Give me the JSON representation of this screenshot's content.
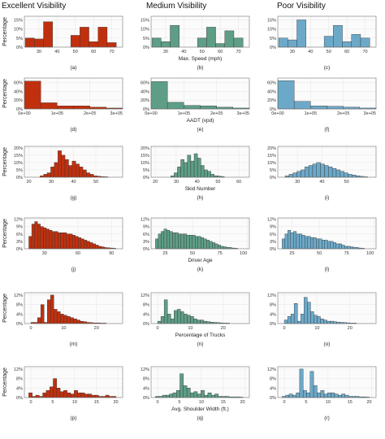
{
  "columns": [
    "Excellent Visibility",
    "Medium Visibility",
    "Poor Visibility"
  ],
  "column_colors": [
    "#c0300e",
    "#5e9e86",
    "#6ca9c9"
  ],
  "chart_data": [
    {
      "type": "bar",
      "row": 0,
      "xlabel": "Max. Speed (mph)",
      "ylabel": "Percentage",
      "xlim": [
        22,
        76
      ],
      "xticks": [
        30,
        40,
        50,
        60,
        70
      ],
      "xtick_labels": [
        "30",
        "40",
        "50",
        "60",
        "70"
      ],
      "ylim": [
        0,
        17
      ],
      "yticks": [
        0,
        5,
        10,
        15
      ],
      "ytick_labels": [
        "0%",
        "5%",
        "10%",
        "15%"
      ],
      "binwidth": 5,
      "panels": [
        {
          "label": "(a)",
          "x": [
            25,
            30,
            35,
            40,
            45,
            50,
            55,
            60,
            65,
            70
          ],
          "values": [
            5,
            4.5,
            14,
            0,
            0,
            6.5,
            11,
            3,
            11,
            2.5
          ]
        },
        {
          "label": "(b)",
          "x": [
            25,
            30,
            35,
            40,
            45,
            50,
            55,
            60,
            65,
            70
          ],
          "values": [
            5,
            3,
            12,
            0,
            0,
            5,
            11,
            2,
            9,
            5
          ]
        },
        {
          "label": "(c)",
          "x": [
            25,
            30,
            35,
            40,
            45,
            50,
            55,
            60,
            65,
            70
          ],
          "values": [
            5,
            4,
            15,
            0,
            0,
            6,
            12,
            3,
            7,
            5
          ]
        }
      ]
    },
    {
      "type": "bar",
      "row": 1,
      "xlabel": "AADT (vpd)",
      "ylabel": "Percentage",
      "xlim": [
        0,
        300000
      ],
      "xticks": [
        0,
        100000,
        200000,
        300000
      ],
      "xtick_labels": [
        "0e+00",
        "1e+05",
        "2e+05",
        "3e+05"
      ],
      "ylim": [
        0,
        70
      ],
      "yticks": [
        0,
        20,
        40,
        60
      ],
      "ytick_labels": [
        "0%",
        "20%",
        "40%",
        "60%"
      ],
      "binwidth": 50000,
      "panels": [
        {
          "label": "(d)",
          "x": [
            25000,
            75000,
            125000,
            175000,
            225000,
            275000
          ],
          "values": [
            63,
            14,
            7,
            7,
            4,
            2
          ]
        },
        {
          "label": "(e)",
          "x": [
            25000,
            75000,
            125000,
            175000,
            225000,
            275000
          ],
          "values": [
            62,
            15,
            8,
            7,
            4,
            2
          ]
        },
        {
          "label": "(f)",
          "x": [
            25000,
            75000,
            125000,
            175000,
            225000,
            275000
          ],
          "values": [
            64,
            17,
            7,
            6,
            4,
            2
          ]
        }
      ]
    },
    {
      "type": "bar",
      "row": 2,
      "xlabel": "Skid Number",
      "ylabel": "Percentage",
      "xlim": [
        18,
        62
      ],
      "xticks": [
        20,
        30,
        40,
        50
      ],
      "xtick_labels": [
        "20",
        "30",
        "40",
        "50"
      ],
      "ylim": [
        0,
        21
      ],
      "yticks": [
        0,
        5,
        10,
        15,
        20
      ],
      "ytick_labels": [
        "0%",
        "5%",
        "10%",
        "15%",
        "20%"
      ],
      "binwidth": 1.6,
      "panels": [
        {
          "label": "(g)",
          "x": [
            25.8,
            27.4,
            29,
            30.6,
            32.2,
            33.8,
            35.4,
            37,
            38.6,
            40.2,
            41.8,
            43.4,
            45,
            46.6,
            48.2,
            49.8,
            51.4,
            53,
            54.6
          ],
          "values": [
            1,
            2,
            3,
            7,
            10,
            18,
            15,
            12,
            8,
            11,
            9,
            7,
            5,
            3,
            2,
            1,
            0.7,
            0.4,
            0.3
          ]
        },
        {
          "label": "(h)",
          "xlim": [
            18,
            65
          ],
          "xticks": [
            20,
            30,
            40,
            50,
            60
          ],
          "xtick_labels": [
            "20",
            "30",
            "40",
            "50",
            "60"
          ],
          "x": [
            28.2,
            29.8,
            31.4,
            33,
            34.6,
            36.2,
            37.8,
            39.4,
            41,
            42.6,
            44.2,
            45.8,
            47.4,
            49,
            50.6,
            52.2
          ],
          "values": [
            1,
            3,
            7,
            12,
            10,
            15,
            11,
            16,
            13,
            8,
            5,
            4,
            2,
            1,
            0.8,
            0.5
          ]
        },
        {
          "label": "(i)",
          "xlim": [
            22,
            62
          ],
          "xticks": [
            30,
            40,
            50
          ],
          "xtick_labels": [
            "30",
            "40",
            "50"
          ],
          "x": [
            25.8,
            27.4,
            29,
            30.6,
            32.2,
            33.8,
            35.4,
            37,
            38.6,
            40.2,
            41.8,
            43.4,
            45,
            46.6,
            48.2,
            49.8,
            51.4,
            53,
            54.6,
            56.2,
            57.8
          ],
          "values": [
            1,
            2,
            3,
            4,
            5,
            7,
            8,
            9,
            10,
            9,
            8,
            7,
            6,
            5,
            4,
            3,
            2,
            1.5,
            1,
            0.6,
            0.3
          ]
        }
      ]
    },
    {
      "type": "bar",
      "row": 3,
      "xlabel": "Driver Age",
      "ylabel": "Percentage",
      "xlim": [
        12,
        102
      ],
      "xticks": [
        25,
        50,
        75,
        100
      ],
      "xtick_labels": [
        "25",
        "50",
        "75",
        "100"
      ],
      "ylim": [
        0,
        12.5
      ],
      "yticks": [
        0,
        3,
        6,
        9,
        12
      ],
      "ytick_labels": [
        "0%",
        "3%",
        "6%",
        "9%",
        "12%"
      ],
      "binwidth": 2.6,
      "panels": [
        {
          "label": "(j)",
          "xlim": [
            12,
            100
          ],
          "xticks": [
            30,
            60,
            90
          ],
          "xtick_labels": [
            "30",
            "60",
            "90"
          ],
          "x": [
            17.3,
            19.9,
            22.5,
            25.1,
            27.7,
            30.3,
            32.9,
            35.5,
            38.1,
            40.7,
            43.3,
            45.9,
            48.5,
            51.1,
            53.7,
            56.3,
            58.9,
            61.5,
            64.1,
            66.7,
            69.3,
            71.9,
            74.5,
            77.1,
            79.7,
            82.3,
            84.9,
            87.5,
            90.1,
            92.7
          ],
          "values": [
            5,
            10,
            11,
            10,
            9,
            8.5,
            8,
            7.5,
            7,
            7,
            6.5,
            6.5,
            6.5,
            6,
            6,
            5.5,
            5,
            4.5,
            4,
            3.5,
            3,
            2.5,
            2,
            1.5,
            1,
            0.8,
            0.5,
            0.4,
            0.3,
            0.2
          ]
        },
        {
          "label": "(k)",
          "x": [
            17.3,
            19.9,
            22.5,
            25.1,
            27.7,
            30.3,
            32.9,
            35.5,
            38.1,
            40.7,
            43.3,
            45.9,
            48.5,
            51.1,
            53.7,
            56.3,
            58.9,
            61.5,
            64.1,
            66.7,
            69.3,
            71.9,
            74.5,
            77.1,
            79.7,
            82.3,
            84.9,
            87.5,
            90.1
          ],
          "values": [
            4,
            6,
            7,
            8,
            7.5,
            7,
            6.5,
            6.5,
            6,
            6,
            6,
            5.5,
            5.5,
            5.5,
            5,
            5,
            4.5,
            4,
            3.5,
            3,
            2.5,
            2,
            1.5,
            1,
            0.8,
            0.6,
            0.5,
            0.3,
            0.2
          ]
        },
        {
          "label": "(l)",
          "x": [
            17.3,
            19.9,
            22.5,
            25.1,
            27.7,
            30.3,
            32.9,
            35.5,
            38.1,
            40.7,
            43.3,
            45.9,
            48.5,
            51.1,
            53.7,
            56.3,
            58.9,
            61.5,
            64.1,
            66.7,
            69.3,
            71.9,
            74.5,
            77.1,
            79.7,
            82.3,
            84.9,
            87.5,
            90.1
          ],
          "values": [
            4,
            6,
            7.5,
            6.5,
            7,
            6,
            6,
            5.5,
            5,
            5,
            4.5,
            4.5,
            4,
            4,
            3.5,
            3.5,
            3,
            3,
            2.5,
            2,
            2,
            1.5,
            1,
            1,
            0.8,
            0.6,
            0.5,
            0.3,
            0.2
          ]
        }
      ]
    },
    {
      "type": "bar",
      "row": 4,
      "xlabel": "Percentage of Trucks",
      "ylabel": "Percentage",
      "xlim": [
        -2,
        28
      ],
      "xticks": [
        0,
        10,
        20
      ],
      "xtick_labels": [
        "0",
        "10",
        "20"
      ],
      "ylim": [
        0,
        13
      ],
      "yticks": [
        0,
        4,
        8,
        12
      ],
      "ytick_labels": [
        "0%",
        "4%",
        "8%",
        "12%"
      ],
      "binwidth": 1,
      "panels": [
        {
          "label": "(m)",
          "x": [
            0.5,
            1.5,
            2.5,
            3.5,
            4.5,
            5.5,
            6.5,
            7.5,
            8.5,
            9.5,
            10.5,
            11.5,
            12.5,
            13.5,
            14.5,
            15.5,
            16.5,
            17.5,
            18.5,
            19.5,
            20.5,
            21.5,
            22.5
          ],
          "values": [
            0.5,
            0.5,
            2.5,
            8,
            0.5,
            10,
            12,
            6,
            5,
            4,
            3.5,
            3,
            2.5,
            2,
            1.5,
            1,
            0.8,
            0.5,
            0.4,
            0.3,
            0.3,
            0.2,
            0.2
          ]
        },
        {
          "label": "(n)",
          "x": [
            0.5,
            1.5,
            2.5,
            3.5,
            4.5,
            5.5,
            6.5,
            7.5,
            8.5,
            9.5,
            10.5,
            11.5,
            12.5,
            13.5,
            14.5,
            15.5,
            16.5,
            17.5,
            18.5,
            19.5,
            20.5,
            21.5
          ],
          "values": [
            1,
            3,
            10,
            4,
            2,
            5.5,
            6,
            5,
            4,
            3.5,
            3,
            2,
            1.5,
            1.5,
            1,
            0.8,
            0.6,
            0.5,
            0.4,
            0.3,
            0.2,
            0.2
          ]
        },
        {
          "label": "(o)",
          "x": [
            0.5,
            1.5,
            2.5,
            3.5,
            4.5,
            5.5,
            6.5,
            7.5,
            8.5,
            9.5,
            10.5,
            11.5,
            12.5,
            13.5,
            14.5,
            15.5,
            16.5,
            17.5,
            18.5,
            19.5,
            20.5,
            21.5
          ],
          "values": [
            1.5,
            3,
            4,
            8.5,
            1,
            4,
            11,
            9,
            5,
            3.5,
            3,
            2,
            1.5,
            1,
            1,
            0.8,
            0.6,
            0.5,
            0.4,
            0.3,
            0.2,
            0.2
          ]
        }
      ]
    },
    {
      "type": "bar",
      "row": 5,
      "xlabel": "Avg. Shoulder Width (ft.)",
      "ylabel": "Percentage",
      "xlim": [
        -1.5,
        21
      ],
      "xticks": [
        0,
        5,
        10,
        15,
        20
      ],
      "xtick_labels": [
        "0",
        "5",
        "10",
        "15",
        "20"
      ],
      "ylim": [
        0,
        13
      ],
      "yticks": [
        0,
        4,
        8,
        12
      ],
      "ytick_labels": [
        "0%",
        "4%",
        "8%",
        "12%"
      ],
      "binwidth": 0.8,
      "panels": [
        {
          "label": "(p)",
          "x": [
            -0.1,
            0.7,
            1.5,
            2.3,
            3.1,
            3.9,
            4.7,
            5.5,
            6.3,
            7.1,
            7.9,
            8.7,
            9.5,
            10.3,
            11.1,
            11.9,
            12.7,
            13.5,
            14.3,
            15.1,
            15.9,
            16.7,
            17.5,
            18.3,
            19.1
          ],
          "values": [
            2,
            0.5,
            1,
            0.5,
            2,
            3,
            4.5,
            8,
            4,
            2.5,
            3,
            2,
            1.5,
            3,
            2,
            2,
            1.5,
            1.5,
            1,
            1,
            0.5,
            0.5,
            1,
            0.5,
            0.5
          ]
        },
        {
          "label": "(q)",
          "x": [
            -0.1,
            0.7,
            1.5,
            2.3,
            3.1,
            3.9,
            4.7,
            5.5,
            6.3,
            7.1,
            7.9,
            8.7,
            9.5,
            10.3,
            11.1,
            11.9,
            12.7,
            13.5,
            14.3,
            15.1,
            15.9,
            16.7,
            17.5,
            18.3,
            19.1
          ],
          "values": [
            0.5,
            0.5,
            1,
            1,
            1.5,
            2,
            3,
            10,
            5,
            4,
            2,
            2.5,
            1.5,
            3,
            1,
            2,
            1,
            1.5,
            0.5,
            0.5,
            0.5,
            0.3,
            0.3,
            0.3,
            0.2
          ]
        },
        {
          "label": "(r)",
          "x": [
            -0.1,
            0.7,
            1.5,
            2.3,
            3.1,
            3.9,
            4.7,
            5.5,
            6.3,
            7.1,
            7.9,
            8.7,
            9.5,
            10.3,
            11.1,
            11.9,
            12.7,
            13.5,
            14.3,
            15.1,
            15.9,
            16.7,
            17.5,
            18.3,
            19.1
          ],
          "values": [
            0.5,
            1,
            1.5,
            1,
            2,
            12,
            3,
            2,
            11,
            5,
            2,
            3,
            1.5,
            2,
            2,
            1.5,
            1,
            1.5,
            1,
            0.5,
            0.5,
            0.5,
            0.3,
            0.3,
            0.2
          ]
        }
      ]
    }
  ]
}
